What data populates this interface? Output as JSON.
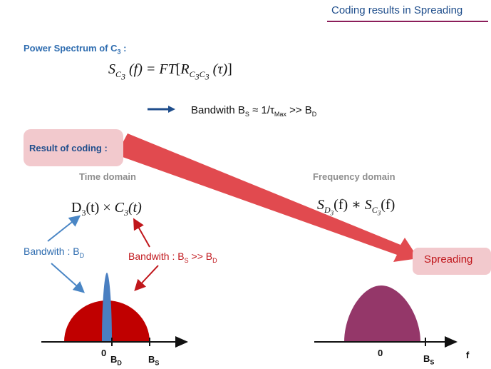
{
  "title": "Coding results in Spreading",
  "power_spectrum": {
    "label": "Power Spectrum of C",
    "sub": "3",
    "colon": " :"
  },
  "formula_psd": {
    "s": "S",
    "s_sub": "C",
    "s_sub2": "3",
    "f": "(f) = FT",
    "r": "R",
    "r_sub": "C",
    "r_sub2": "3",
    "r_sub3": "C",
    "r_sub4": "3",
    "tau": "(τ)"
  },
  "bandwidth_line": {
    "prefix": "Bandwith  B",
    "bs_sub": "S",
    "approx": " ≈  1/τ",
    "tau_sub": "Max",
    "gg": "  >>  B",
    "bd_sub": "D"
  },
  "result_of_coding": "Result of coding :",
  "time_domain": "Time domain",
  "freq_domain": "Frequency domain",
  "formula_time": {
    "d": "D",
    "d_sub": "3",
    "rest": "(t) × ",
    "c": "C",
    "c_sub": "3",
    "end": "(t)"
  },
  "formula_freq": {
    "s": "S",
    "sub1": "D",
    "sub2": "3",
    "mid": "(f) ∗ ",
    "s2": "S",
    "sub3": "C",
    "sub4": "3",
    "end": "(f)"
  },
  "bandwidth_d": {
    "prefix": "Bandwith : B",
    "sub": "D"
  },
  "bandwidth_s": {
    "prefix": "Bandwith : B",
    "sub": "S",
    "mid": " >> B",
    "sub2": "D"
  },
  "spreading": "Spreading",
  "ticks": {
    "zero_left": "0",
    "bd": "B",
    "bd_sub": "D",
    "bs_left": "B",
    "bs_left_sub": "S",
    "zero_right": "0",
    "bs_right": "B",
    "bs_right_sub": "S",
    "f": "f"
  },
  "colors": {
    "accent_blue": "#2f6db0",
    "accent_red": "#c0161b",
    "dark_red_lobe": "#c00000",
    "purple_lobe": "#943769",
    "pink_box": "#f2c9cd",
    "title_rule": "#8b1d5a",
    "big_arrow": "#e14a4f"
  }
}
